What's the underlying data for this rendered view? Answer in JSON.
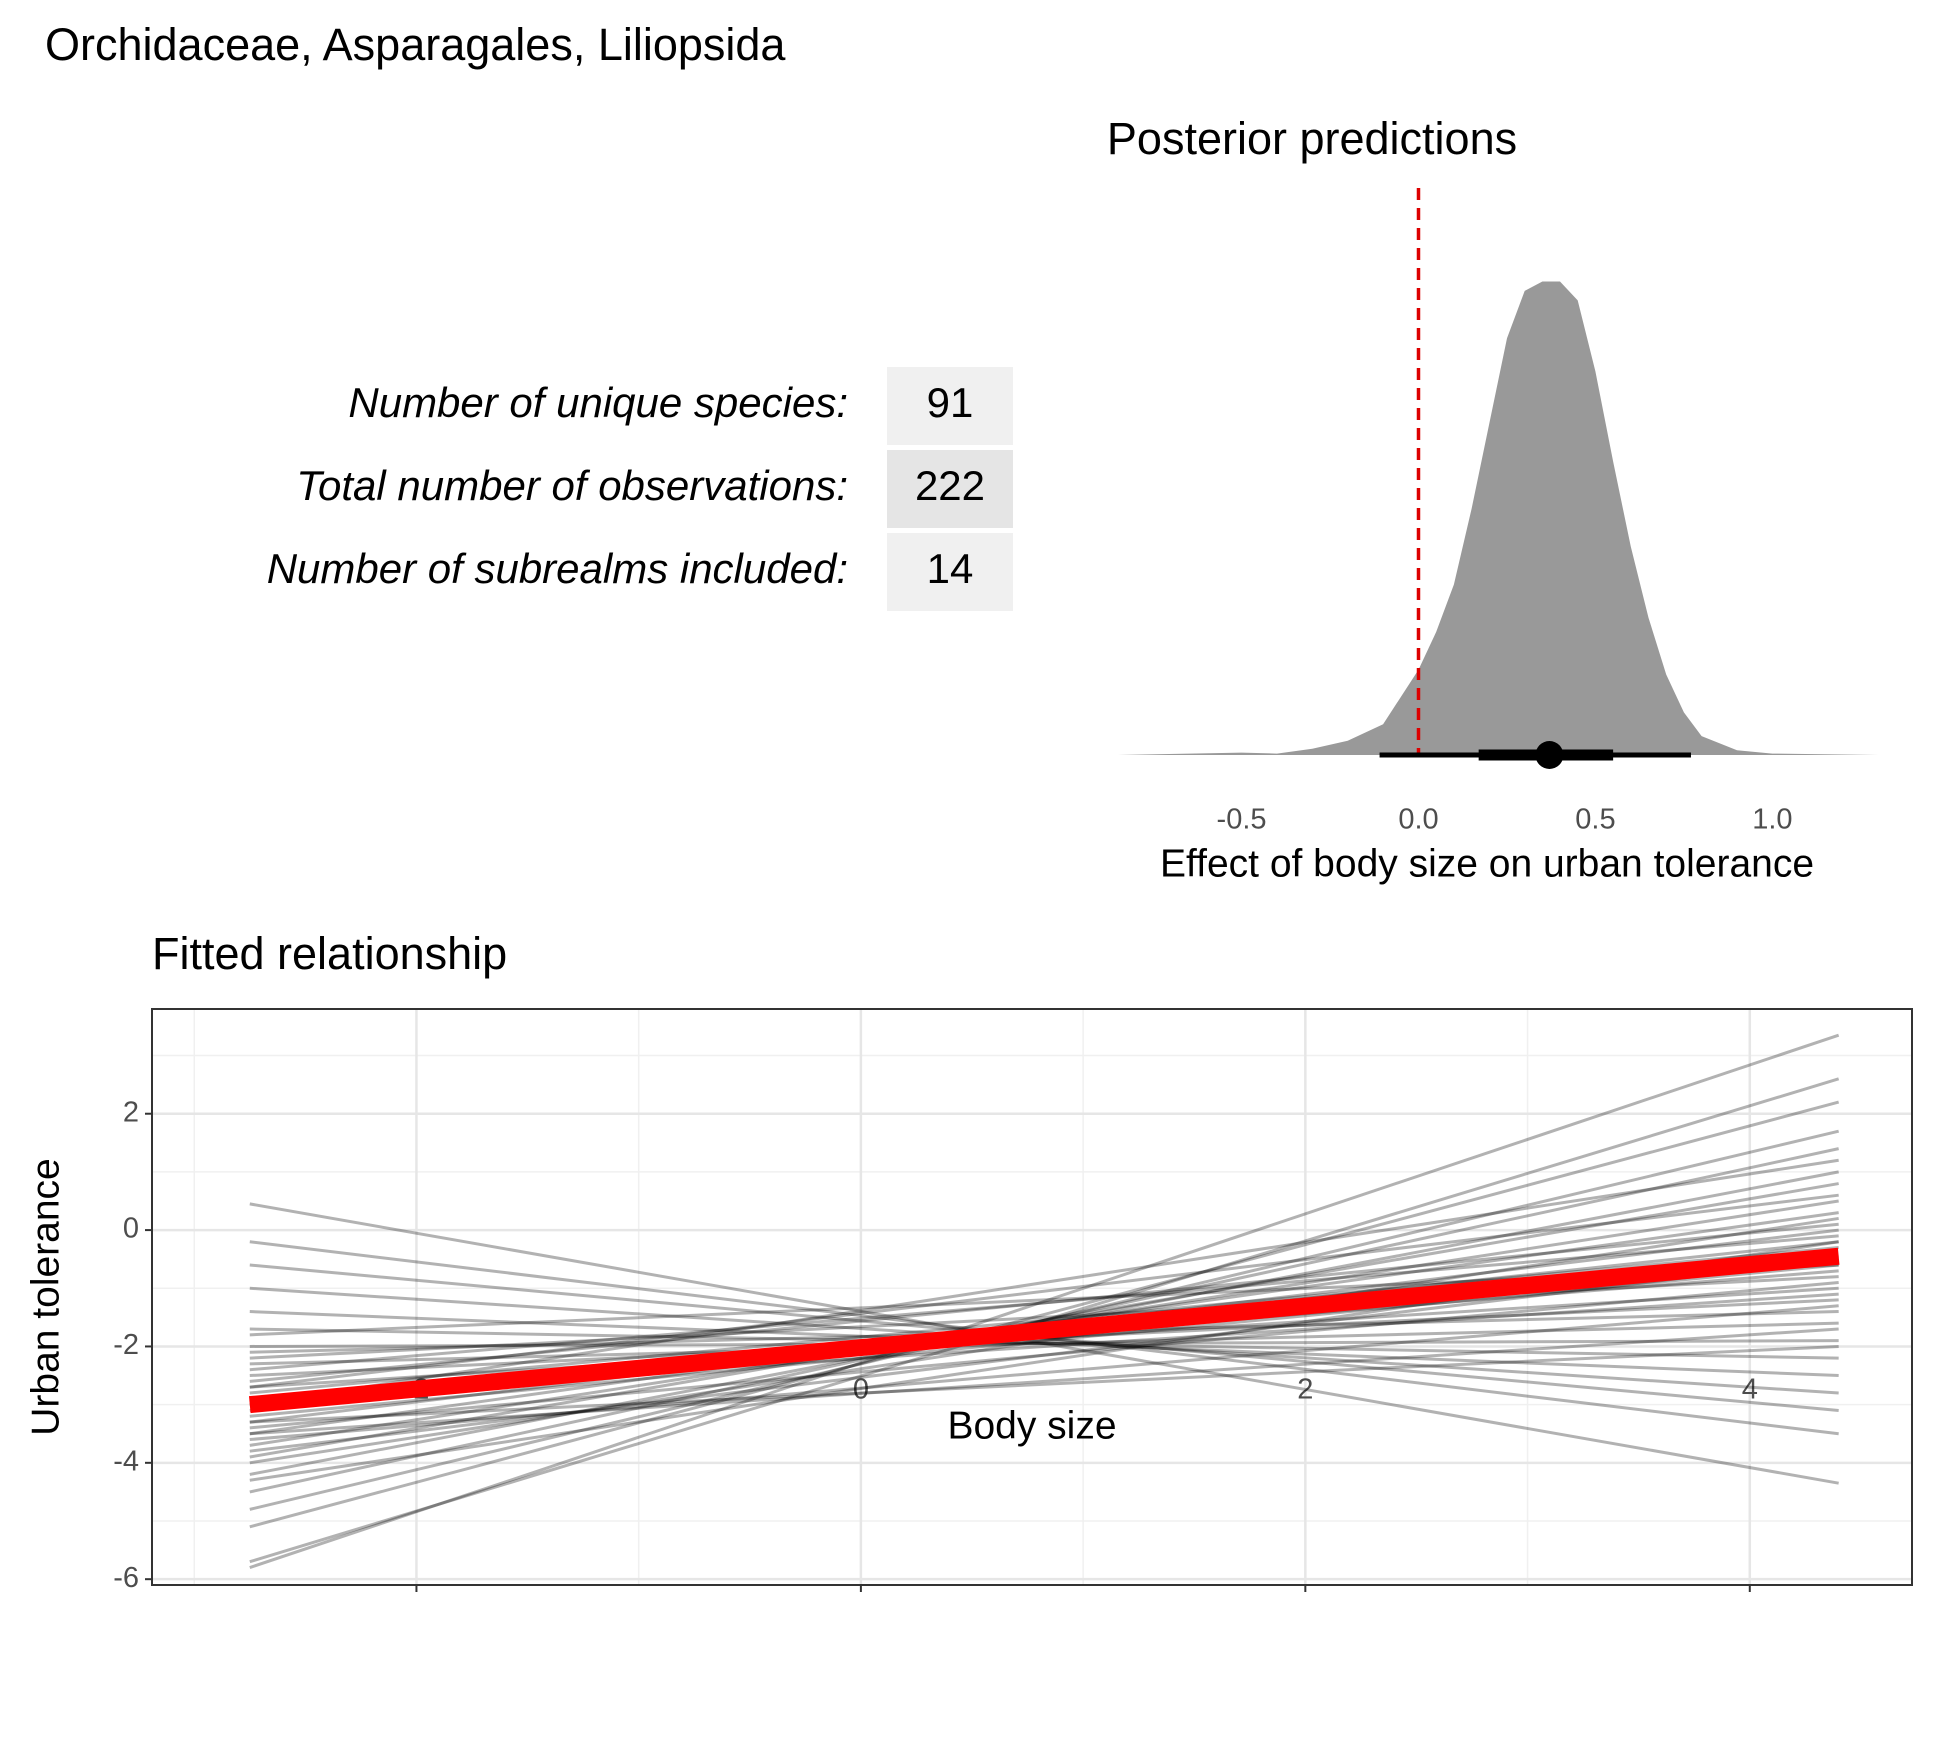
{
  "title": "Orchidaceae, Asparagales, Liliopsida",
  "table": {
    "rows": [
      [
        "Number of unique species:",
        91
      ],
      [
        "Total number of observations:",
        222
      ],
      [
        "Number of subrealms included:",
        14
      ]
    ]
  },
  "chart_data": [
    {
      "type": "density",
      "title": "Posterior predictions",
      "xlabel": "Effect of body size on urban tolerance",
      "x": [
        -0.85,
        -0.5,
        -0.4,
        -0.3,
        -0.2,
        -0.1,
        0,
        0.05,
        0.1,
        0.15,
        0.2,
        0.25,
        0.3,
        0.35,
        0.4,
        0.45,
        0.5,
        0.55,
        0.6,
        0.65,
        0.7,
        0.75,
        0.8,
        0.9,
        1.0,
        1.3
      ],
      "density": [
        0,
        0.005,
        0.003,
        0.013,
        0.03,
        0.065,
        0.18,
        0.26,
        0.36,
        0.52,
        0.7,
        0.88,
        0.98,
        1.0,
        1.0,
        0.96,
        0.81,
        0.62,
        0.44,
        0.29,
        0.17,
        0.09,
        0.04,
        0.01,
        0.003,
        0
      ],
      "ylim": [
        0,
        1.02
      ],
      "color": "#999999",
      "point": 0.37,
      "inner": [
        0.17,
        0.55
      ],
      "outer": [
        -0.11,
        0.77
      ],
      "vline": 0,
      "vline_color": "#dd0000",
      "xlim": [
        -0.9,
        1.29
      ],
      "xticks": [
        -0.5,
        {
          "value": 0,
          "label": "0.0"
        },
        0.5,
        {
          "value": 1,
          "label": "1.0"
        }
      ]
    },
    {
      "type": "lines",
      "title": "Fitted relationship",
      "xlabel": "Body size",
      "ylabel": "Urban tolerance",
      "x": [
        -2.75,
        4.4
      ],
      "lines": [
        [
          0.45,
          -4.35
        ],
        [
          -5.8,
          3.35
        ],
        [
          -5.7,
          2.6
        ],
        [
          -0.2,
          -3.5
        ],
        [
          -5.1,
          2.2
        ],
        [
          -0.6,
          -3.1
        ],
        [
          -4.8,
          1.7
        ],
        [
          -1.0,
          -2.8
        ],
        [
          -4.5,
          1.4
        ],
        [
          -1.4,
          -2.5
        ],
        [
          -4.2,
          1.0
        ],
        [
          -1.7,
          -2.2
        ],
        [
          -3.9,
          0.8
        ],
        [
          -2.0,
          -1.9
        ],
        [
          -3.7,
          0.5
        ],
        [
          -2.3,
          -1.6
        ],
        [
          -3.5,
          0.3
        ],
        [
          -2.5,
          -1.2
        ],
        [
          -3.3,
          0.0
        ],
        [
          -2.7,
          -1.0
        ],
        [
          -3.1,
          -0.2
        ],
        [
          -2.9,
          -0.7
        ],
        [
          -3.0,
          -0.45
        ],
        [
          -3.2,
          -0.6
        ],
        [
          -2.8,
          -0.3
        ],
        [
          -3.4,
          -0.9
        ],
        [
          -2.6,
          0.1
        ],
        [
          -3.6,
          -1.3
        ],
        [
          -2.4,
          -0.1
        ],
        [
          -3.8,
          -0.5
        ],
        [
          -2.2,
          -0.8
        ],
        [
          -4.0,
          0.2
        ],
        [
          -2.1,
          -1.4
        ],
        [
          -4.3,
          -0.2
        ],
        [
          -1.8,
          -0.6
        ],
        [
          -3.0,
          1.2
        ],
        [
          -3.3,
          -2.0
        ],
        [
          -2.7,
          0.6
        ],
        [
          -3.5,
          -1.7
        ],
        [
          -2.9,
          -1.1
        ]
      ],
      "line_color": "rgba(0,0,0,0.3)",
      "fit": [
        -3.0,
        -0.45
      ],
      "fit_color": "#ff0000",
      "xlim": [
        -3.19,
        4.73
      ],
      "ylim": [
        -6.1,
        3.8
      ],
      "xticks": [
        -2,
        0,
        2,
        4
      ],
      "yticks": [
        -6,
        -4,
        -2,
        0,
        2
      ],
      "grid": true,
      "minor_grid": true
    }
  ]
}
